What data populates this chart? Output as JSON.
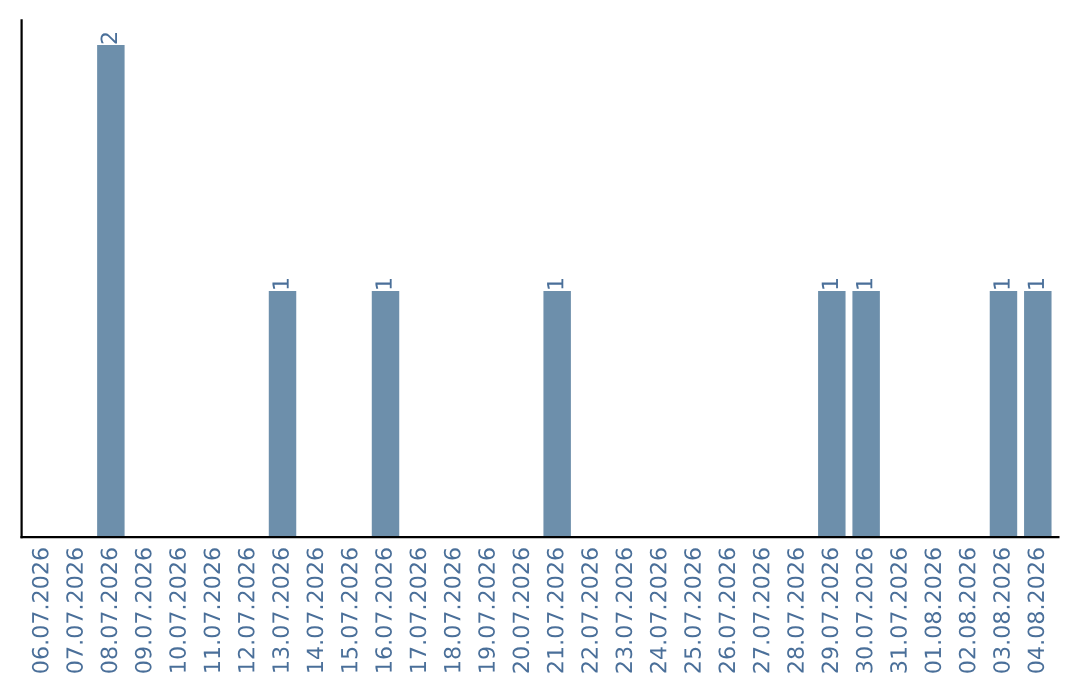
{
  "chart_data": {
    "type": "bar",
    "categories": [
      "06.07.2026",
      "07.07.2026",
      "08.07.2026",
      "09.07.2026",
      "10.07.2026",
      "11.07.2026",
      "12.07.2026",
      "13.07.2026",
      "14.07.2026",
      "15.07.2026",
      "16.07.2026",
      "17.07.2026",
      "18.07.2026",
      "19.07.2026",
      "20.07.2026",
      "21.07.2026",
      "22.07.2026",
      "23.07.2026",
      "24.07.2026",
      "25.07.2026",
      "26.07.2026",
      "27.07.2026",
      "28.07.2026",
      "29.07.2026",
      "30.07.2026",
      "31.07.2026",
      "01.08.2026",
      "02.08.2026",
      "03.08.2026",
      "04.08.2026"
    ],
    "values": [
      0,
      0,
      2,
      0,
      0,
      0,
      0,
      1,
      0,
      0,
      1,
      0,
      0,
      0,
      0,
      1,
      0,
      0,
      0,
      0,
      0,
      0,
      0,
      1,
      1,
      0,
      0,
      0,
      1,
      1
    ],
    "value_labels": [
      null,
      null,
      "2",
      null,
      null,
      null,
      null,
      "1",
      null,
      null,
      "1",
      null,
      null,
      null,
      null,
      "1",
      null,
      null,
      null,
      null,
      null,
      null,
      null,
      "1",
      "1",
      null,
      null,
      null,
      "1",
      "1"
    ],
    "color": "#6d8fab",
    "tick_labels": "x",
    "grid": false,
    "legend": false
  }
}
